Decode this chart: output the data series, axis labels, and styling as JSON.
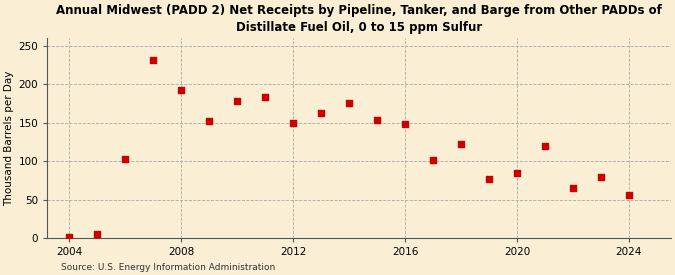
{
  "title": "Annual Midwest (PADD 2) Net Receipts by Pipeline, Tanker, and Barge from Other PADDs of\nDistillate Fuel Oil, 0 to 15 ppm Sulfur",
  "ylabel": "Thousand Barrels per Day",
  "source": "Source: U.S. Energy Information Administration",
  "background_color": "#faefd4",
  "marker_color": "#cc0000",
  "years": [
    2004,
    2005,
    2006,
    2007,
    2008,
    2009,
    2010,
    2011,
    2012,
    2013,
    2014,
    2015,
    2016,
    2017,
    2018,
    2019,
    2020,
    2021,
    2022,
    2023,
    2024
  ],
  "values": [
    2,
    5,
    103,
    232,
    192,
    152,
    178,
    184,
    149,
    163,
    175,
    154,
    148,
    101,
    122,
    77,
    84,
    120,
    65,
    79,
    56
  ],
  "xlim": [
    2003.2,
    2025.5
  ],
  "ylim": [
    0,
    260
  ],
  "yticks": [
    0,
    50,
    100,
    150,
    200,
    250
  ],
  "xticks": [
    2004,
    2008,
    2012,
    2016,
    2020,
    2024
  ],
  "grid_color": "#aaaaaa",
  "title_fontsize": 8.5,
  "label_fontsize": 7.5,
  "tick_fontsize": 7.5,
  "source_fontsize": 6.5
}
